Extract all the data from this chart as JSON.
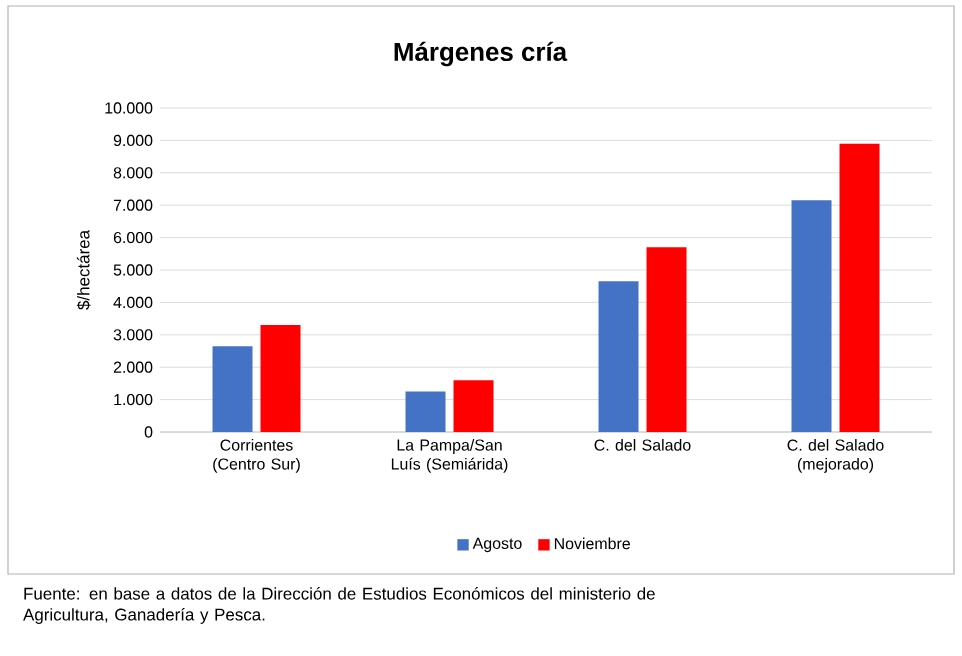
{
  "chart_data": {
    "type": "bar",
    "title": "Márgenes cría",
    "ylabel": "$/hectárea",
    "categories": [
      "Corrientes (Centro Sur)",
      "La Pampa/San Luís (Semiárida)",
      "C. del Salado",
      "C. del Salado (mejorado)"
    ],
    "series": [
      {
        "name": "Agosto",
        "color": "#4472c4",
        "values": [
          2650,
          1250,
          4650,
          7150
        ]
      },
      {
        "name": "Noviembre",
        "color": "#ff0000",
        "values": [
          3300,
          1600,
          5700,
          8900
        ]
      }
    ],
    "ylim": [
      0,
      10000
    ],
    "yticks": [
      {
        "value": 0,
        "label": "0"
      },
      {
        "value": 1000,
        "label": "1.000"
      },
      {
        "value": 2000,
        "label": "2.000"
      },
      {
        "value": 3000,
        "label": "3.000"
      },
      {
        "value": 4000,
        "label": "4.000"
      },
      {
        "value": 5000,
        "label": "5.000"
      },
      {
        "value": 6000,
        "label": "6.000"
      },
      {
        "value": 7000,
        "label": "7.000"
      },
      {
        "value": 8000,
        "label": "8.000"
      },
      {
        "value": 9000,
        "label": "9.000"
      },
      {
        "value": 10000,
        "label": "10.000"
      }
    ],
    "grid": "y",
    "legend": "bottom",
    "annotations": [
      "Fuente: en base a datos de la Dirección de Estudios Económicos del ministerio de Agricultura, Ganadería y Pesca."
    ]
  }
}
